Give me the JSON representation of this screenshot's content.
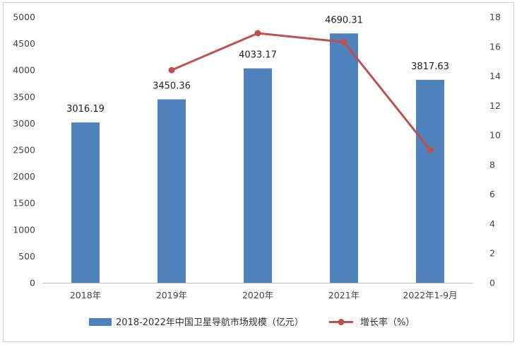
{
  "chart_data": {
    "type": "bar+line",
    "categories": [
      "2018年",
      "2019年",
      "2020年",
      "2021年",
      "2022年1-9月"
    ],
    "series": [
      {
        "name": "2018-2022年中国卫星导航市场规模（亿元）",
        "type": "bar",
        "axis": "left",
        "color": "#4f81bd",
        "values": [
          3016.19,
          3450.36,
          4033.17,
          4690.31,
          3817.63
        ],
        "labels": [
          "3016.19",
          "3450.36",
          "4033.17",
          "4690.31",
          "3817.63"
        ]
      },
      {
        "name": "增长率（%）",
        "type": "line",
        "axis": "right",
        "color": "#c0504d",
        "values": [
          null,
          14.4,
          16.9,
          16.3,
          9.0
        ]
      }
    ],
    "y_left": {
      "min": 0,
      "max": 5000,
      "step": 500,
      "ticks": [
        "0",
        "500",
        "1000",
        "1500",
        "2000",
        "2500",
        "3000",
        "3500",
        "4000",
        "4500",
        "5000"
      ]
    },
    "y_right": {
      "min": 0,
      "max": 18,
      "step": 2,
      "ticks": [
        "0",
        "2",
        "4",
        "6",
        "8",
        "10",
        "12",
        "14",
        "16",
        "18"
      ]
    },
    "grid": false,
    "legend_position": "bottom"
  }
}
